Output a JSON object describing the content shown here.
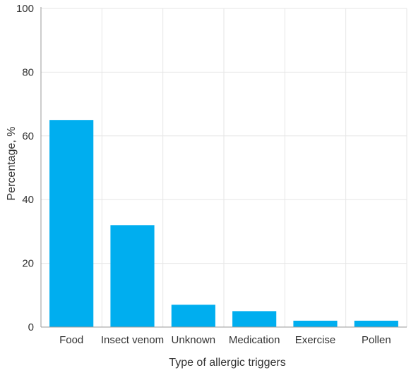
{
  "chart_data": {
    "type": "bar",
    "title": "",
    "xlabel": "Type of allergic triggers",
    "ylabel": "Percentage, %",
    "categories": [
      "Food",
      "Insect venom",
      "Unknown",
      "Medication",
      "Exercise",
      "Pollen"
    ],
    "values": [
      65,
      32,
      7,
      5,
      2,
      2
    ],
    "ylim": [
      0,
      100
    ],
    "yticks": [
      0,
      20,
      40,
      60,
      80,
      100
    ],
    "grid": true,
    "bar_color": "#00aeef",
    "grid_color": "#e6e6e6",
    "axis_color": "#999999"
  }
}
